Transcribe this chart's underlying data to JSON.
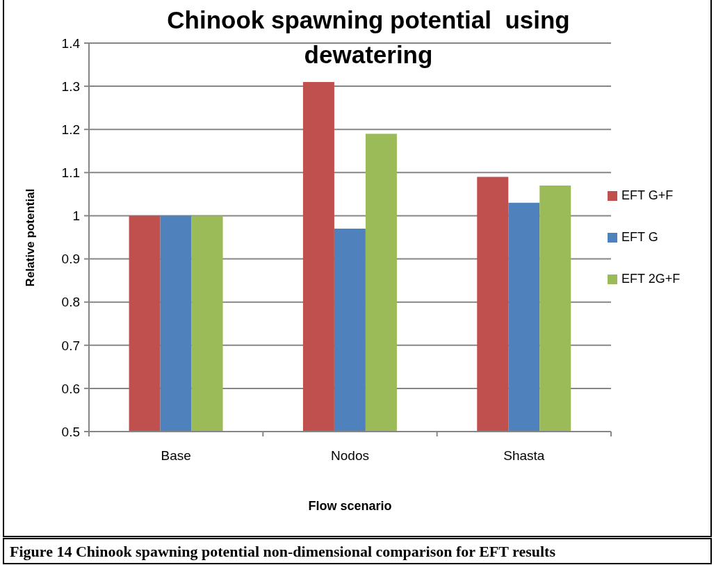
{
  "chart_data": {
    "type": "bar",
    "title": "Chinook spawning potential  using dewatering",
    "xlabel": "Flow scenario",
    "ylabel": "Relative potential",
    "categories": [
      "Base",
      "Nodos",
      "Shasta"
    ],
    "series": [
      {
        "name": "EFT G+F",
        "color": "#c0504d",
        "values": [
          1.0,
          1.31,
          1.09
        ]
      },
      {
        "name": "EFT G",
        "color": "#4f81bd",
        "values": [
          1.0,
          0.97,
          1.03
        ]
      },
      {
        "name": "EFT 2G+F",
        "color": "#9bbb59",
        "values": [
          1.0,
          1.19,
          1.07
        ]
      }
    ],
    "ylim": [
      0.5,
      1.4
    ],
    "yticks": [
      0.5,
      0.6,
      0.7,
      0.8,
      0.9,
      1,
      1.1,
      1.2,
      1.3,
      1.4
    ],
    "grid": "y",
    "legend": "right",
    "annotations": [
      "Figure 14 Chinook spawning potential non-dimensional comparison for EFT results"
    ]
  }
}
